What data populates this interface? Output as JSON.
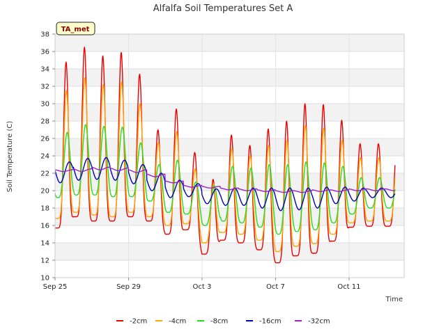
{
  "chart_data": {
    "type": "line",
    "title": "Alfalfa Soil Temperatures Set A",
    "xlabel": "Time",
    "ylabel": "Soil Temperature (C)",
    "badge": "TA_met",
    "ylim": [
      10,
      38
    ],
    "yticks": [
      10,
      12,
      14,
      16,
      18,
      20,
      22,
      24,
      26,
      28,
      30,
      32,
      34,
      36,
      38
    ],
    "xlim": [
      "2023-09-25",
      "2023-10-14"
    ],
    "xticks": [
      {
        "date": "2023-09-25",
        "label": "Sep 25"
      },
      {
        "date": "2023-09-29",
        "label": "Sep 29"
      },
      {
        "date": "2023-10-03",
        "label": "Oct 3"
      },
      {
        "date": "2023-10-07",
        "label": "Oct 7"
      },
      {
        "date": "2023-10-11",
        "label": "Oct 11"
      }
    ],
    "grid": true,
    "legend_position": "bottom",
    "series": [
      {
        "name": "-2cm",
        "color": "#ee0000",
        "daily_min": [
          15.7,
          17.0,
          16.5,
          16.5,
          17.0,
          16.5,
          15.0,
          15.5,
          12.7,
          14.3,
          14.0,
          13.2,
          11.7,
          12.5,
          12.8,
          14.2,
          15.8,
          15.9
        ],
        "daily_max": [
          34.8,
          36.5,
          35.5,
          35.9,
          33.4,
          27.0,
          29.4,
          24.4,
          21.3,
          26.4,
          25.2,
          27.1,
          28.0,
          30.0,
          29.9,
          28.1,
          25.4
        ]
      },
      {
        "name": "-4cm",
        "color": "#ffa500",
        "daily_min": [
          16.8,
          17.5,
          17.2,
          17.0,
          17.5,
          17.0,
          16.0,
          16.2,
          14.0,
          15.2,
          15.0,
          14.3,
          13.0,
          13.6,
          13.9,
          15.0,
          16.3,
          16.5
        ],
        "daily_max": [
          31.5,
          33.0,
          32.2,
          32.5,
          30.0,
          25.5,
          26.8,
          22.5,
          20.8,
          24.8,
          24.0,
          25.2,
          25.8,
          27.5,
          27.2,
          25.8,
          23.8
        ]
      },
      {
        "name": "-8cm",
        "color": "#22dd22",
        "daily_min": [
          19.2,
          19.5,
          19.5,
          19.3,
          19.3,
          18.8,
          17.5,
          17.3,
          16.0,
          16.5,
          16.3,
          15.8,
          15.0,
          15.3,
          15.5,
          16.3,
          17.3,
          18.0
        ],
        "daily_max": [
          26.7,
          27.6,
          27.4,
          27.3,
          25.5,
          23.0,
          23.5,
          21.0,
          20.6,
          22.8,
          22.6,
          23.0,
          23.0,
          23.3,
          23.2,
          22.8,
          21.5
        ]
      },
      {
        "name": "-16cm",
        "color": "#0000bb",
        "daily_min": [
          20.9,
          21.2,
          21.3,
          21.2,
          20.8,
          20.0,
          19.2,
          19.3,
          18.5,
          18.3,
          18.3,
          18.0,
          17.7,
          17.8,
          18.0,
          18.5,
          18.8,
          19.2
        ],
        "daily_max": [
          23.3,
          23.7,
          23.8,
          23.5,
          23.0,
          22.0,
          21.2,
          20.8,
          20.2,
          20.3,
          20.3,
          20.3,
          20.3,
          20.3,
          20.4,
          20.4,
          20.3
        ]
      },
      {
        "name": "-32cm",
        "color": "#9922cc",
        "daily_min": [
          22.2,
          22.2,
          22.4,
          22.3,
          22.1,
          21.6,
          20.9,
          20.4,
          20.3,
          20.1,
          20.0,
          19.9,
          19.8,
          19.8,
          19.9,
          19.9,
          20.0,
          20.0
        ],
        "daily_max": [
          22.4,
          22.5,
          22.7,
          22.6,
          22.4,
          21.9,
          21.1,
          20.6,
          20.5,
          20.3,
          20.2,
          20.1,
          20.0,
          20.0,
          20.1,
          20.1,
          20.2
        ]
      }
    ]
  }
}
